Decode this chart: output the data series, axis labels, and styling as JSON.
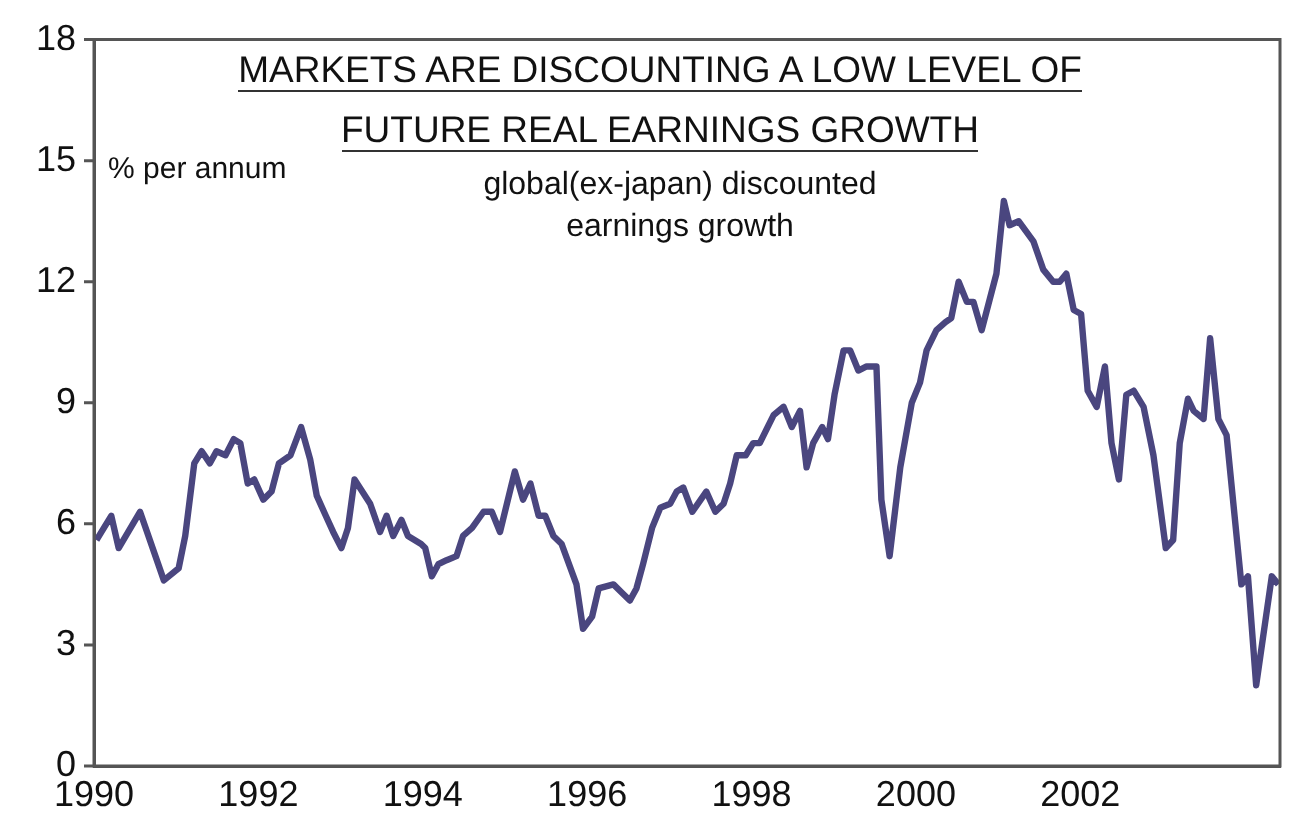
{
  "chart_data": {
    "type": "line",
    "title": "MARKETS ARE DISCOUNTING A LOW LEVEL OF FUTURE REAL EARNINGS GROWTH",
    "subtitle": "global(ex-japan) discounted earnings growth",
    "ylabel": "% per annum",
    "series": [
      {
        "color": "#4a467f",
        "x": [
          1990.03,
          1990.21,
          1990.3,
          1990.56,
          1990.85,
          1991.03,
          1991.11,
          1991.22,
          1991.31,
          1991.41,
          1991.49,
          1991.6,
          1991.7,
          1991.78,
          1991.87,
          1991.95,
          1992.06,
          1992.16,
          1992.25,
          1992.39,
          1992.52,
          1992.63,
          1992.71,
          1992.82,
          1992.91,
          1993.01,
          1993.09,
          1993.17,
          1993.36,
          1993.48,
          1993.56,
          1993.64,
          1993.74,
          1993.82,
          1993.98,
          1994.03,
          1994.11,
          1994.19,
          1994.29,
          1994.41,
          1994.49,
          1994.6,
          1994.74,
          1994.84,
          1994.94,
          1995.12,
          1995.22,
          1995.31,
          1995.41,
          1995.49,
          1995.59,
          1995.69,
          1995.87,
          1995.95,
          1996.06,
          1996.14,
          1996.32,
          1996.42,
          1996.52,
          1996.6,
          1996.68,
          1996.79,
          1996.89,
          1997.01,
          1997.09,
          1997.17,
          1997.28,
          1997.45,
          1997.56,
          1997.66,
          1997.74,
          1997.82,
          1997.93,
          1998.02,
          1998.1,
          1998.27,
          1998.39,
          1998.49,
          1998.59,
          1998.67,
          1998.75,
          1998.86,
          1998.93,
          1999.01,
          1999.12,
          1999.2,
          1999.3,
          1999.4,
          1999.52,
          1999.58,
          1999.68,
          1999.81,
          1999.95,
          2000.05,
          2000.13,
          2000.25,
          2000.36,
          2000.43,
          2000.52,
          2000.62,
          2000.7,
          2000.8,
          2000.98,
          2001.07,
          2001.14,
          2001.25,
          2001.43,
          2001.55,
          2001.67,
          2001.75,
          2001.83,
          2001.92,
          2002.01,
          2002.09,
          2002.2,
          2002.3,
          2002.38,
          2002.47,
          2002.56,
          2002.65,
          2002.77,
          2002.89,
          2003.04,
          2003.13,
          2003.21,
          2003.31,
          2003.38,
          2003.5,
          2003.58,
          2003.68,
          2003.78,
          2003.96,
          2004.04,
          2004.14,
          2004.33,
          2004.41
        ],
        "values": [
          5.6,
          6.2,
          5.4,
          6.3,
          4.6,
          4.9,
          5.7,
          7.5,
          7.8,
          7.5,
          7.8,
          7.7,
          8.1,
          8.0,
          7.0,
          7.1,
          6.6,
          6.8,
          7.5,
          7.7,
          8.4,
          7.6,
          6.7,
          6.2,
          5.8,
          5.4,
          5.9,
          7.1,
          6.5,
          5.8,
          6.2,
          5.7,
          6.1,
          5.7,
          5.5,
          5.4,
          4.7,
          5.0,
          5.1,
          5.2,
          5.7,
          5.9,
          6.3,
          6.3,
          5.8,
          7.3,
          6.6,
          7.0,
          6.2,
          6.2,
          5.7,
          5.5,
          4.5,
          3.4,
          3.7,
          4.4,
          4.5,
          4.3,
          4.1,
          4.4,
          5.0,
          5.9,
          6.4,
          6.5,
          6.8,
          6.9,
          6.3,
          6.8,
          6.3,
          6.5,
          7.0,
          7.7,
          7.7,
          8.0,
          8.0,
          8.7,
          8.9,
          8.4,
          8.8,
          7.4,
          8.0,
          8.4,
          8.1,
          9.2,
          10.3,
          10.3,
          9.8,
          9.9,
          9.9,
          6.6,
          5.2,
          7.4,
          9.0,
          9.5,
          10.3,
          10.8,
          11.0,
          11.1,
          12.0,
          11.5,
          11.5,
          10.8,
          12.2,
          14.0,
          13.4,
          13.5,
          13.0,
          12.3,
          12.0,
          12.0,
          12.2,
          11.3,
          11.2,
          9.3,
          8.9,
          9.9,
          8.0,
          7.1,
          9.2,
          9.3,
          8.9,
          7.7,
          5.4,
          5.6,
          8.0,
          9.1,
          8.8,
          8.6,
          10.6,
          8.6,
          8.2,
          4.5,
          4.7,
          2.0,
          4.7,
          4.5
        ]
      }
    ],
    "xlim": [
      1990,
      2004.43
    ],
    "xticks": [
      1990,
      1992,
      1994,
      1996,
      1998,
      2000,
      2002
    ],
    "ylim": [
      0,
      18
    ],
    "yticks": [
      0,
      3,
      6,
      9,
      12,
      15,
      18
    ],
    "grid": false,
    "legend": false,
    "marker": "none",
    "line_style": "solid"
  }
}
